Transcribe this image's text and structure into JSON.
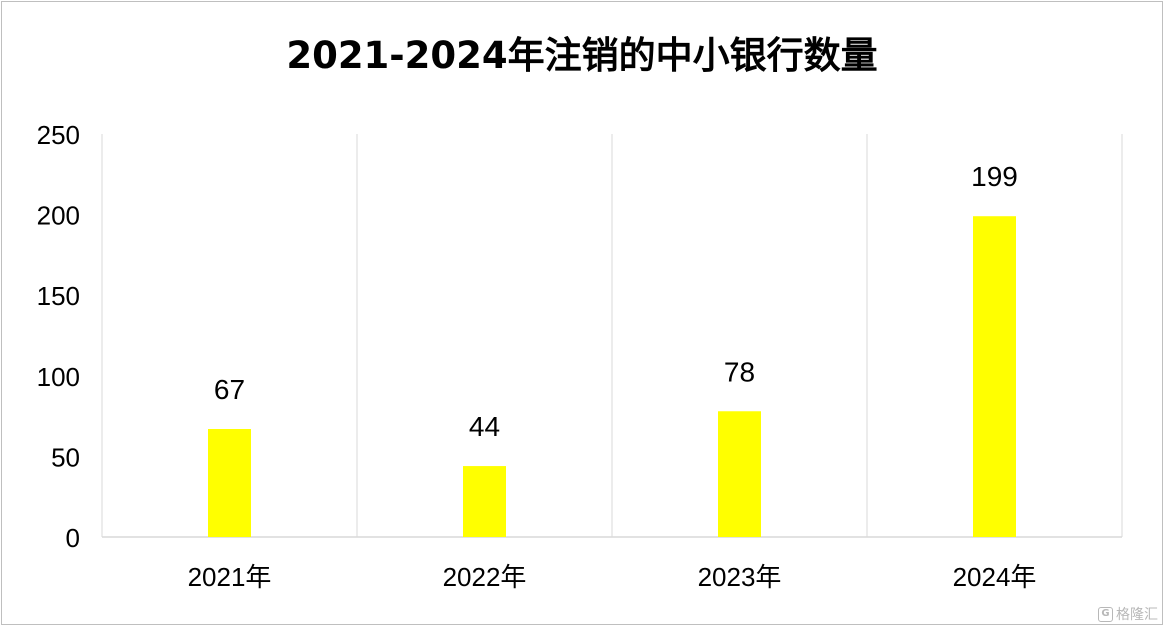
{
  "chart_data": {
    "type": "bar",
    "title": "2021-2024年注销的中小银行数量",
    "categories": [
      "2021年",
      "2022年",
      "2023年",
      "2024年"
    ],
    "series": [
      {
        "values": [
          67,
          44,
          78,
          199
        ],
        "color": "#ffff00"
      }
    ],
    "data_labels": [
      "67",
      "44",
      "78",
      "199"
    ],
    "ylim": [
      0,
      250
    ],
    "yticks": [
      0,
      50,
      100,
      150,
      200,
      250
    ],
    "grid": "vertical category separators",
    "legend": "none"
  },
  "watermark": {
    "icon": "G",
    "text": "格隆汇"
  }
}
